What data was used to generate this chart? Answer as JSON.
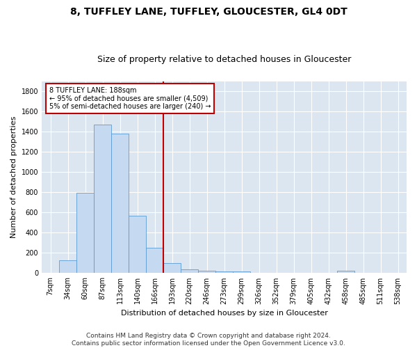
{
  "title": "8, TUFFLEY LANE, TUFFLEY, GLOUCESTER, GL4 0DT",
  "subtitle": "Size of property relative to detached houses in Gloucester",
  "xlabel": "Distribution of detached houses by size in Gloucester",
  "ylabel": "Number of detached properties",
  "bar_color": "#c5d9f1",
  "bar_edge_color": "#5b9bd5",
  "categories": [
    "7sqm",
    "34sqm",
    "60sqm",
    "87sqm",
    "113sqm",
    "140sqm",
    "166sqm",
    "193sqm",
    "220sqm",
    "246sqm",
    "273sqm",
    "299sqm",
    "326sqm",
    "352sqm",
    "379sqm",
    "405sqm",
    "432sqm",
    "458sqm",
    "485sqm",
    "511sqm",
    "538sqm"
  ],
  "values": [
    5,
    130,
    795,
    1470,
    1380,
    570,
    250,
    100,
    35,
    25,
    20,
    15,
    5,
    0,
    0,
    0,
    0,
    25,
    0,
    0,
    0
  ],
  "ylim": [
    0,
    1900
  ],
  "yticks": [
    0,
    200,
    400,
    600,
    800,
    1000,
    1200,
    1400,
    1600,
    1800
  ],
  "vline_x_index": 7,
  "vline_color": "#c00000",
  "annotation_text": "8 TUFFLEY LANE: 188sqm\n← 95% of detached houses are smaller (4,509)\n5% of semi-detached houses are larger (240) →",
  "annotation_box_color": "#ffffff",
  "annotation_box_edge": "#c00000",
  "footer_line1": "Contains HM Land Registry data © Crown copyright and database right 2024.",
  "footer_line2": "Contains public sector information licensed under the Open Government Licence v3.0.",
  "background_color": "#ffffff",
  "plot_bg_color": "#dce6f1",
  "grid_color": "#ffffff",
  "title_fontsize": 10,
  "subtitle_fontsize": 9,
  "tick_fontsize": 7,
  "ylabel_fontsize": 8,
  "xlabel_fontsize": 8,
  "footer_fontsize": 6.5
}
